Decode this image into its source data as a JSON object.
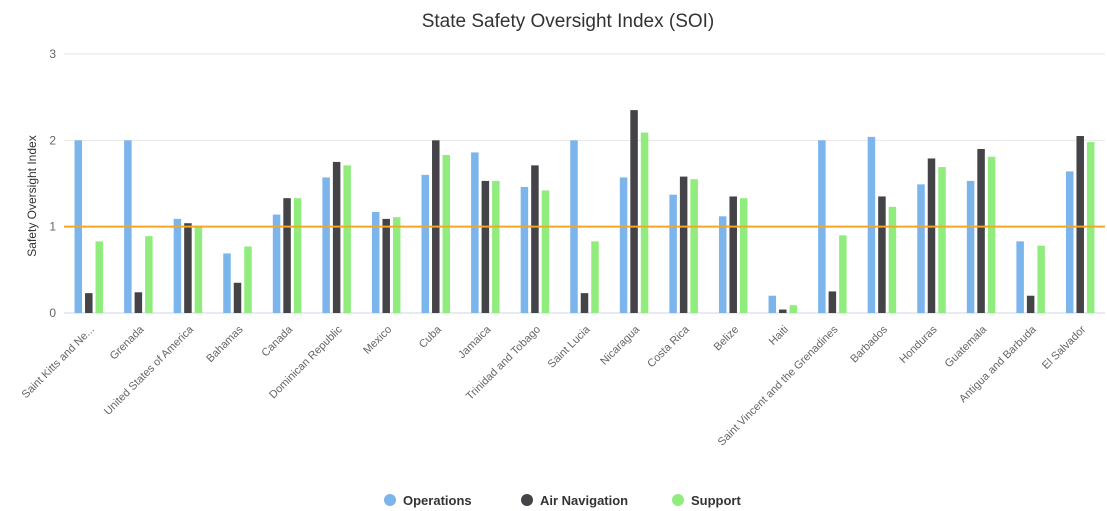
{
  "chart_data": {
    "type": "bar",
    "title": "State Safety Oversight Index (SOI)",
    "xlabel": "",
    "ylabel": "Safety Oversight Index",
    "ylim": [
      0,
      3
    ],
    "yticks": [
      "0",
      "1",
      "2",
      "3"
    ],
    "grid": true,
    "legend_position": "bottom-center",
    "reference_line": {
      "value": 1,
      "color": "#f5a623"
    },
    "categories": [
      "Saint Kitts and Ne...",
      "Grenada",
      "United States of America",
      "Bahamas",
      "Canada",
      "Dominican Republic",
      "Mexico",
      "Cuba",
      "Jamaica",
      "Trinidad and Tobago",
      "Saint Lucia",
      "Nicaragua",
      "Costa Rica",
      "Belize",
      "Haiti",
      "Saint Vincent and the Grenadines",
      "Barbados",
      "Honduras",
      "Guatemala",
      "Antigua and Barbuda",
      "El Salvador"
    ],
    "series": [
      {
        "name": "Operations",
        "color": "#7cb5ec",
        "values": [
          2.0,
          2.0,
          1.09,
          0.69,
          1.14,
          1.57,
          1.17,
          1.6,
          1.86,
          1.46,
          2.0,
          1.57,
          1.37,
          1.12,
          0.2,
          2.0,
          2.04,
          1.49,
          1.53,
          0.83,
          1.64
        ]
      },
      {
        "name": "Air Navigation",
        "color": "#434348",
        "values": [
          0.23,
          0.24,
          1.04,
          0.35,
          1.33,
          1.75,
          1.09,
          2.0,
          1.53,
          1.71,
          0.23,
          2.35,
          1.58,
          1.35,
          0.04,
          0.25,
          1.35,
          1.79,
          1.9,
          0.2,
          2.05
        ]
      },
      {
        "name": "Support",
        "color": "#90ed7d",
        "values": [
          0.83,
          0.89,
          1.01,
          0.77,
          1.33,
          1.71,
          1.11,
          1.83,
          1.53,
          1.42,
          0.83,
          2.09,
          1.55,
          1.33,
          0.09,
          0.9,
          1.23,
          1.69,
          1.81,
          0.78,
          1.98
        ]
      }
    ]
  }
}
